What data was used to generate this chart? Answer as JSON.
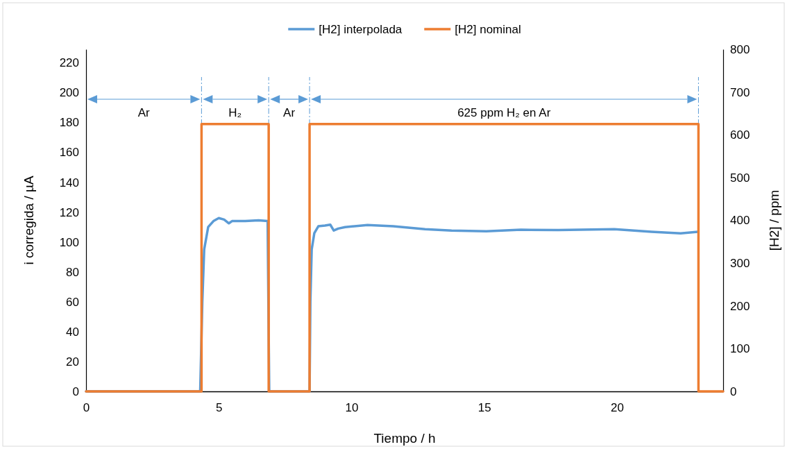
{
  "chart_data": {
    "type": "line",
    "xlabel": "Tiempo / h",
    "ylabel": "i corregida / µA",
    "y2label": "[H2] / ppm",
    "xlim": [
      0,
      24
    ],
    "xticks": [
      0,
      5,
      10,
      15,
      20
    ],
    "ylim": [
      0,
      229
    ],
    "yticks": [
      0,
      20,
      40,
      60,
      80,
      100,
      120,
      140,
      160,
      180,
      200,
      220
    ],
    "y2lim": [
      0,
      800
    ],
    "y2ticks": [
      0,
      100,
      200,
      300,
      400,
      500,
      600,
      700,
      800
    ],
    "legend": "top",
    "grid": false,
    "line_style": "solid",
    "marker": "none",
    "series": [
      {
        "name": "[H2] interpolada",
        "color": "#5b9bd5",
        "x": [
          0,
          4.3,
          4.38,
          4.45,
          4.6,
          4.8,
          5.0,
          5.2,
          5.38,
          5.5,
          6.0,
          6.5,
          6.84,
          6.9,
          7.8,
          8.42,
          8.45,
          8.5,
          8.6,
          8.75,
          9.0,
          9.2,
          9.33,
          9.5,
          9.76,
          10.6,
          11.57,
          12.77,
          13.77,
          15.08,
          16.38,
          17.78,
          19.9,
          21.3,
          22.4,
          23.05
        ],
        "values": [
          0,
          0,
          60,
          95,
          110,
          114,
          116,
          115,
          112.5,
          114,
          114,
          114.5,
          114,
          0,
          0,
          0,
          60,
          95,
          106,
          110.5,
          111,
          111.6,
          107.7,
          109,
          110,
          111.4,
          110.5,
          108.6,
          107.7,
          107.2,
          108.2,
          108,
          108.6,
          106.8,
          105.8,
          106.8
        ]
      },
      {
        "name": "[H2] nominal",
        "color": "#ed7d31",
        "axis": "y2",
        "x": [
          0,
          4.35,
          4.35,
          6.88,
          6.88,
          8.42,
          8.42,
          23.07,
          23.07,
          24
        ],
        "values": [
          0,
          0,
          625,
          625,
          0,
          0,
          625,
          625,
          0,
          0
        ]
      }
    ],
    "ref_lines": [
      {
        "axis": "x",
        "value": 4.35,
        "color": "#5b9bd5",
        "line_style": "dashed"
      },
      {
        "axis": "x",
        "value": 6.88,
        "color": "#5b9bd5",
        "line_style": "dashed"
      },
      {
        "axis": "x",
        "value": 8.42,
        "color": "#5b9bd5",
        "line_style": "dashed"
      },
      {
        "axis": "x",
        "value": 23.07,
        "color": "#5b9bd5",
        "line_style": "dashed"
      }
    ],
    "annotations": [
      "Ar",
      "H₂",
      "Ar",
      "625 ppm H₂ en Ar"
    ]
  }
}
